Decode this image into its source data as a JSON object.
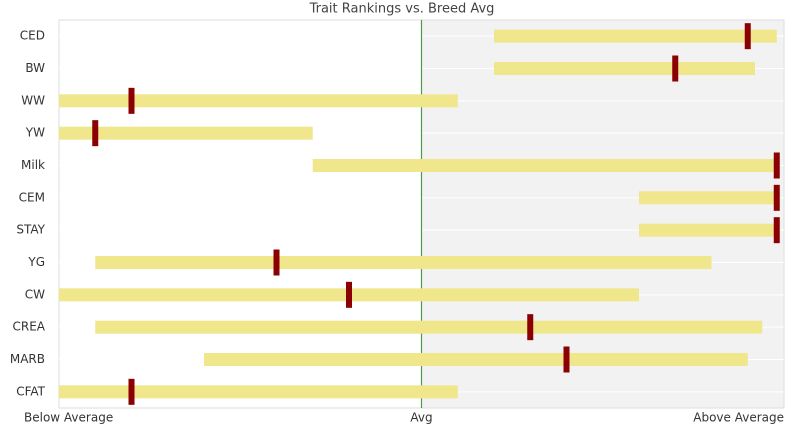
{
  "chart_data": {
    "type": "range",
    "title": "Trait Rankings vs. Breed Avg",
    "categories": [
      "CED",
      "BW",
      "WW",
      "YW",
      "Milk",
      "CEM",
      "STAY",
      "YG",
      "CW",
      "CREA",
      "MARB",
      "CFAT"
    ],
    "low": [
      60,
      60,
      0,
      0,
      35,
      80,
      80,
      5,
      0,
      5,
      20,
      0
    ],
    "high": [
      99,
      96,
      55,
      35,
      99,
      99,
      99,
      90,
      80,
      97,
      95,
      55
    ],
    "values": [
      95,
      85,
      10,
      5,
      99,
      99,
      99,
      30,
      40,
      65,
      70,
      10
    ],
    "range_color": "#f0e68c",
    "color": "#8b0000",
    "avg_color": "#4c9a4c",
    "xlim": [
      0,
      100
    ],
    "xticks": [
      {
        "value": 0,
        "label": "Below Average"
      },
      {
        "value": 50,
        "label": "Avg"
      },
      {
        "value": 100,
        "label": "Above Average"
      }
    ],
    "grid": true
  }
}
